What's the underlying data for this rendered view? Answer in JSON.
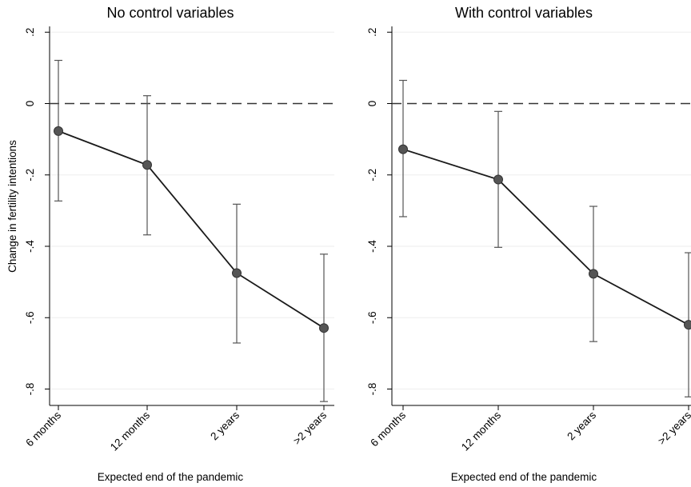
{
  "chart_data": [
    {
      "type": "line",
      "title": "No control variables",
      "xlabel": "Expected end of the pandemic",
      "ylabel": "Change in fertility intentions",
      "categories": [
        "6 months",
        "12 months",
        "2 years",
        ">2 years"
      ],
      "values": [
        -0.077,
        -0.172,
        -0.475,
        -0.629
      ],
      "ci_low": [
        -0.273,
        -0.368,
        -0.671,
        -0.835
      ],
      "ci_high": [
        0.121,
        0.022,
        -0.282,
        -0.422
      ],
      "reference_line": 0,
      "yticks": [
        ".2",
        "0",
        "-.2",
        "-.4",
        "-.6",
        "-.8"
      ],
      "ytick_values": [
        0.2,
        0,
        -0.2,
        -0.4,
        -0.6,
        -0.8
      ],
      "ylim": [
        -0.85,
        0.22
      ],
      "grid": "horizontal"
    },
    {
      "type": "line",
      "title": "With control variables",
      "xlabel": "Expected end of the pandemic",
      "ylabel": "",
      "categories": [
        "6 months",
        "12 months",
        "2 years",
        ">2 years"
      ],
      "values": [
        -0.128,
        -0.213,
        -0.477,
        -0.62
      ],
      "ci_low": [
        -0.317,
        -0.403,
        -0.667,
        -0.822
      ],
      "ci_high": [
        0.065,
        -0.022,
        -0.288,
        -0.418
      ],
      "reference_line": 0,
      "yticks": [
        ".2",
        "0",
        "-.2",
        "-.4",
        "-.6",
        "-.8"
      ],
      "ytick_values": [
        0.2,
        0,
        -0.2,
        -0.4,
        -0.6,
        -0.8
      ],
      "ylim": [
        -0.85,
        0.22
      ],
      "grid": "horizontal"
    }
  ],
  "colors": {
    "line": "#1a1a1a",
    "marker": "#555555",
    "ci": "#555555",
    "grid": "#eeeeee",
    "reference": "#333333"
  }
}
